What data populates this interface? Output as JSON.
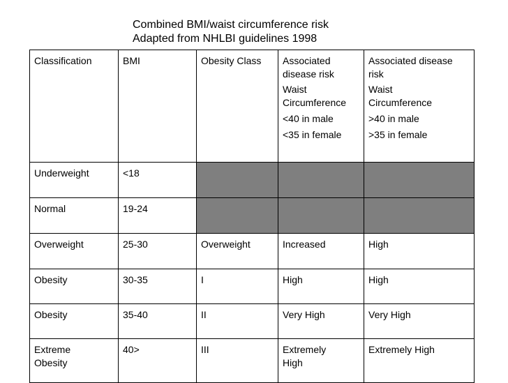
{
  "title": {
    "line1": "Combined BMI/waist circumference risk",
    "line2": "Adapted from NHLBI guidelines 1998"
  },
  "headers": {
    "classification": "Classification",
    "bmi": "BMI",
    "obesity_class": "Obesity Class",
    "risk_low": {
      "line1": "Associated",
      "line2": "disease risk",
      "waist1": "Waist",
      "waist2": "Circumference",
      "male": "<40 in male",
      "female": "<35 in female"
    },
    "risk_high": {
      "line1": "Associated disease",
      "line2": "risk",
      "waist1": "Waist",
      "waist2": "Circumference",
      "male": ">40 in male",
      ">35": "",
      "female": ">35 in female"
    }
  },
  "rows": [
    {
      "classification": "Underweight",
      "bmi": "<18",
      "obesity_class": "",
      "risk_low": "",
      "risk_high": "",
      "shaded": true
    },
    {
      "classification": "Normal",
      "bmi": "19-24",
      "obesity_class": "",
      "risk_low": "",
      "risk_high": "",
      "shaded": true
    },
    {
      "classification": "Overweight",
      "bmi": "25-30",
      "obesity_class": "Overweight",
      "risk_low": "Increased",
      "risk_high": "High"
    },
    {
      "classification": "Obesity",
      "bmi": "30-35",
      "obesity_class": "I",
      "risk_low": "High",
      "risk_high": "High"
    },
    {
      "classification": "Obesity",
      "bmi": "35-40",
      "obesity_class": "II",
      "risk_low": "Very High",
      "risk_high": "Very High"
    },
    {
      "classification_l1": "Extreme",
      "classification_l2": "Obesity",
      "bmi": "40>",
      "obesity_class": "III",
      "risk_low_l1": "Extremely",
      "risk_low_l2": "High",
      "risk_high": "Extremely High"
    }
  ],
  "colors": {
    "shaded_cell": "#7f7f7f",
    "border": "#000000"
  }
}
